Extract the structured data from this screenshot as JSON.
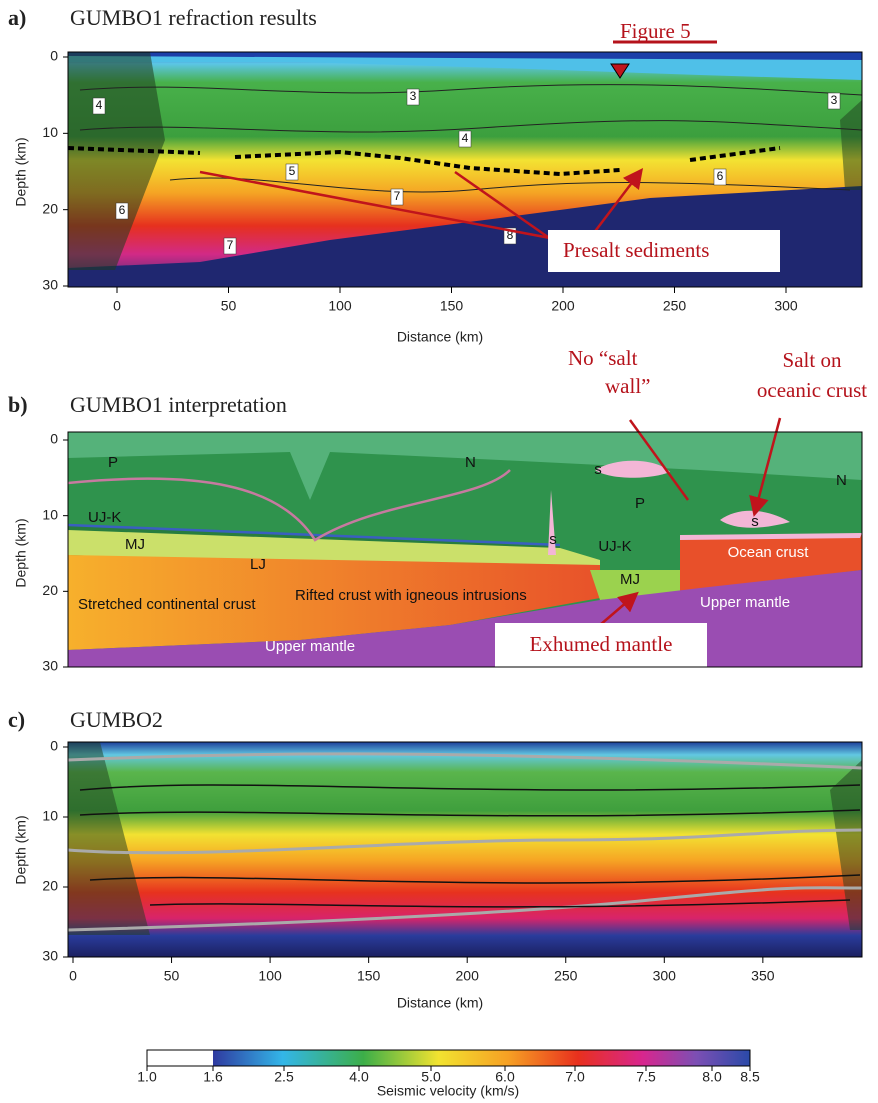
{
  "panels": [
    {
      "label": "a)",
      "title": "GUMBO1 refraction results",
      "y_axis_label": "Depth (km)",
      "y_ticks": [
        0,
        10,
        20,
        30
      ],
      "x_ticks": [
        0,
        50,
        100,
        150,
        200,
        250,
        300
      ],
      "x_axis_label": "Distance (km)",
      "contour_labels": [
        "4",
        "3",
        "3",
        "4",
        "5",
        "6",
        "6",
        "7",
        "7",
        "8"
      ],
      "annotations": [
        "Figure 5",
        "Presalt sediments"
      ]
    },
    {
      "label": "b)",
      "title": "GUMBO1 interpretation",
      "y_axis_label": "Depth (km)",
      "y_ticks": [
        0,
        10,
        20,
        30
      ],
      "unit_labels": [
        "P",
        "N",
        "N",
        "UJ-K",
        "MJ",
        "LJ",
        "s",
        "s",
        "s",
        "P",
        "UJ-K",
        "MJ",
        "Ocean crust",
        "Stretched continental crust",
        "Rifted crust with igneous intrusions",
        "Upper mantle",
        "Upper mantle"
      ],
      "annotations": [
        {
          "lines": [
            "No “salt",
            "wall”"
          ]
        },
        {
          "lines": [
            "Salt on",
            "oceanic crust"
          ]
        },
        {
          "lines": [
            "Exhumed mantle"
          ]
        }
      ]
    },
    {
      "label": "c)",
      "title": "GUMBO2",
      "y_axis_label": "Depth (km)",
      "y_ticks": [
        0,
        10,
        20,
        30
      ],
      "x_ticks": [
        0,
        50,
        100,
        150,
        200,
        250,
        300,
        350
      ],
      "x_axis_label": "Distance (km)"
    }
  ],
  "colorbar": {
    "ticks": [
      "1.0",
      "1.6",
      "2.5",
      "4.0",
      "5.0",
      "6.0",
      "7.0",
      "7.5",
      "8.0",
      "8.5"
    ],
    "label": "Seismic velocity (km/s)"
  }
}
